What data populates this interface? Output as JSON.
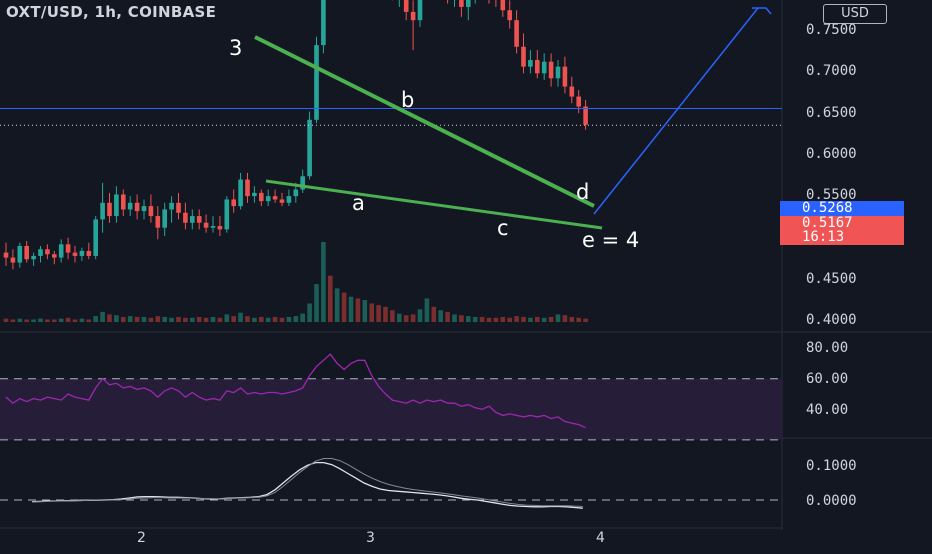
{
  "header": {
    "title": "OXT/USD, 1h, COINBASE",
    "currency": "USD"
  },
  "colors": {
    "background": "#131722",
    "up": "#26a69a",
    "down": "#ef5350",
    "upVolume": "#1a5e57",
    "downVolume": "#7a2e2e",
    "wedgeLine": "#4caf50",
    "projection": "#2962ff",
    "rsiLine": "#9c27b0",
    "rsiBand": "#2a1e3d",
    "currentPriceLine": "#2962ff",
    "lastPriceTag": "#f05454"
  },
  "chart_data": [
    {
      "type": "candlestick",
      "title": "OXT/USD, 1h, COINBASE",
      "x_ticks": [
        "2",
        "3",
        "4"
      ],
      "y_ticks": [
        "0.7500",
        "0.7000",
        "0.6500",
        "0.6000",
        "0.5500",
        "0.4500",
        "0.4000"
      ],
      "ylim": [
        0.4,
        0.76
      ],
      "price_labels": {
        "blue": "0.5268",
        "last": "0.5167",
        "countdown": "16:13"
      },
      "candles": [
        [
          0.44,
          0.446,
          0.432,
          0.437
        ],
        [
          0.437,
          0.442,
          0.43,
          0.434
        ],
        [
          0.434,
          0.446,
          0.431,
          0.444
        ],
        [
          0.444,
          0.447,
          0.434,
          0.436
        ],
        [
          0.436,
          0.44,
          0.432,
          0.438
        ],
        [
          0.438,
          0.444,
          0.434,
          0.442
        ],
        [
          0.442,
          0.445,
          0.436,
          0.439
        ],
        [
          0.439,
          0.441,
          0.433,
          0.437
        ],
        [
          0.437,
          0.448,
          0.434,
          0.445
        ],
        [
          0.445,
          0.449,
          0.436,
          0.44
        ],
        [
          0.44,
          0.444,
          0.434,
          0.438
        ],
        [
          0.438,
          0.443,
          0.435,
          0.441
        ],
        [
          0.441,
          0.446,
          0.436,
          0.438
        ],
        [
          0.438,
          0.462,
          0.436,
          0.46
        ],
        [
          0.46,
          0.482,
          0.452,
          0.47
        ],
        [
          0.47,
          0.476,
          0.458,
          0.462
        ],
        [
          0.462,
          0.48,
          0.458,
          0.475
        ],
        [
          0.475,
          0.478,
          0.462,
          0.466
        ],
        [
          0.466,
          0.474,
          0.462,
          0.47
        ],
        [
          0.47,
          0.475,
          0.46,
          0.465
        ],
        [
          0.465,
          0.472,
          0.46,
          0.468
        ],
        [
          0.468,
          0.475,
          0.458,
          0.462
        ],
        [
          0.462,
          0.468,
          0.448,
          0.455
        ],
        [
          0.455,
          0.47,
          0.45,
          0.466
        ],
        [
          0.466,
          0.474,
          0.458,
          0.47
        ],
        [
          0.47,
          0.476,
          0.46,
          0.464
        ],
        [
          0.464,
          0.47,
          0.454,
          0.458
        ],
        [
          0.458,
          0.466,
          0.454,
          0.462
        ],
        [
          0.462,
          0.466,
          0.454,
          0.458
        ],
        [
          0.458,
          0.463,
          0.452,
          0.455
        ],
        [
          0.455,
          0.462,
          0.452,
          0.456
        ],
        [
          0.456,
          0.462,
          0.45,
          0.454
        ],
        [
          0.454,
          0.474,
          0.452,
          0.472
        ],
        [
          0.472,
          0.478,
          0.464,
          0.468
        ],
        [
          0.468,
          0.488,
          0.466,
          0.484
        ],
        [
          0.484,
          0.488,
          0.47,
          0.474
        ],
        [
          0.474,
          0.48,
          0.47,
          0.476
        ],
        [
          0.476,
          0.478,
          0.468,
          0.471
        ],
        [
          0.471,
          0.478,
          0.468,
          0.474
        ],
        [
          0.474,
          0.478,
          0.47,
          0.472
        ],
        [
          0.472,
          0.476,
          0.468,
          0.47
        ],
        [
          0.47,
          0.478,
          0.468,
          0.474
        ],
        [
          0.474,
          0.482,
          0.47,
          0.478
        ],
        [
          0.478,
          0.49,
          0.476,
          0.486
        ],
        [
          0.486,
          0.525,
          0.484,
          0.52
        ],
        [
          0.52,
          0.57,
          0.518,
          0.565
        ],
        [
          0.565,
          0.75,
          0.56,
          0.66
        ],
        [
          0.66,
          0.74,
          0.62,
          0.64
        ],
        [
          0.64,
          0.69,
          0.62,
          0.67
        ],
        [
          0.67,
          0.7,
          0.632,
          0.64
        ],
        [
          0.64,
          0.7,
          0.635,
          0.695
        ],
        [
          0.695,
          0.712,
          0.66,
          0.675
        ],
        [
          0.675,
          0.712,
          0.66,
          0.705
        ],
        [
          0.705,
          0.715,
          0.66,
          0.665
        ],
        [
          0.665,
          0.672,
          0.638,
          0.645
        ],
        [
          0.645,
          0.656,
          0.615,
          0.625
        ],
        [
          0.625,
          0.64,
          0.592,
          0.598
        ],
        [
          0.598,
          0.606,
          0.588,
          0.6
        ],
        [
          0.6,
          0.608,
          0.58,
          0.585
        ],
        [
          0.585,
          0.592,
          0.562,
          0.58
        ],
        [
          0.58,
          0.61,
          0.576,
          0.605
        ],
        [
          0.605,
          0.662,
          0.598,
          0.612
        ],
        [
          0.612,
          0.625,
          0.598,
          0.605
        ],
        [
          0.605,
          0.622,
          0.595,
          0.615
        ],
        [
          0.615,
          0.622,
          0.59,
          0.595
        ],
        [
          0.595,
          0.612,
          0.588,
          0.61
        ],
        [
          0.61,
          0.614,
          0.582,
          0.588
        ],
        [
          0.588,
          0.6,
          0.58,
          0.595
        ],
        [
          0.595,
          0.612,
          0.59,
          0.605
        ],
        [
          0.605,
          0.615,
          0.595,
          0.6
        ],
        [
          0.6,
          0.606,
          0.59,
          0.598
        ],
        [
          0.598,
          0.604,
          0.588,
          0.594
        ],
        [
          0.594,
          0.6,
          0.582,
          0.586
        ],
        [
          0.586,
          0.592,
          0.575,
          0.58
        ],
        [
          0.58,
          0.586,
          0.56,
          0.564
        ],
        [
          0.564,
          0.572,
          0.548,
          0.552
        ],
        [
          0.552,
          0.562,
          0.548,
          0.556
        ],
        [
          0.556,
          0.562,
          0.545,
          0.548
        ],
        [
          0.548,
          0.56,
          0.544,
          0.555
        ],
        [
          0.555,
          0.56,
          0.54,
          0.545
        ],
        [
          0.545,
          0.556,
          0.54,
          0.552
        ],
        [
          0.552,
          0.558,
          0.536,
          0.54
        ],
        [
          0.54,
          0.546,
          0.53,
          0.534
        ],
        [
          0.534,
          0.538,
          0.524,
          0.528
        ],
        [
          0.528,
          0.532,
          0.514,
          0.517
        ]
      ]
    },
    {
      "type": "bar",
      "title": "Volume",
      "values": [
        4,
        3,
        4,
        3,
        3,
        4,
        3,
        3,
        4,
        5,
        3,
        4,
        3,
        7,
        12,
        9,
        8,
        6,
        7,
        6,
        6,
        5,
        7,
        6,
        5,
        6,
        5,
        5,
        6,
        5,
        6,
        5,
        9,
        7,
        11,
        7,
        5,
        6,
        5,
        6,
        5,
        6,
        7,
        10,
        22,
        45,
        95,
        55,
        40,
        35,
        30,
        28,
        26,
        22,
        20,
        18,
        14,
        10,
        8,
        9,
        15,
        28,
        18,
        14,
        12,
        9,
        8,
        7,
        6,
        6,
        5,
        5,
        6,
        5,
        7,
        6,
        5,
        6,
        5,
        6,
        9,
        8,
        6,
        5,
        4
      ]
    },
    {
      "type": "line",
      "title": "RSI",
      "y_ticks": [
        "80.00",
        "60.00",
        "40.00"
      ],
      "ylim": [
        30,
        90
      ],
      "values": [
        58,
        54,
        57,
        55,
        57,
        56,
        58,
        57,
        56,
        60,
        58,
        57,
        56,
        64,
        70,
        66,
        67,
        64,
        65,
        63,
        64,
        62,
        58,
        62,
        64,
        62,
        58,
        61,
        58,
        56,
        57,
        56,
        62,
        61,
        64,
        60,
        61,
        60,
        61,
        61,
        60,
        61,
        62,
        64,
        72,
        78,
        82,
        86,
        80,
        76,
        80,
        82,
        82,
        72,
        65,
        60,
        56,
        55,
        54,
        56,
        54,
        56,
        55,
        56,
        54,
        54,
        52,
        53,
        51,
        50,
        52,
        48,
        46,
        47,
        46,
        45,
        46,
        45,
        46,
        44,
        45,
        42,
        41,
        40,
        38
      ]
    },
    {
      "type": "line",
      "title": "MACD",
      "y_ticks": [
        "0.1000",
        "0.0000"
      ],
      "ylim": [
        -0.04,
        0.14
      ],
      "series": [
        {
          "values": [
            -0.005,
            -0.004,
            -0.003,
            -0.003,
            -0.002,
            -0.002,
            -0.001,
            -0.001,
            -0.001,
            0.0,
            0.001,
            0.003,
            0.006,
            0.009,
            0.01,
            0.01,
            0.009,
            0.008,
            0.008,
            0.007,
            0.006,
            0.004,
            0.003,
            0.003,
            0.005,
            0.006,
            0.007,
            0.008,
            0.01,
            0.016,
            0.03,
            0.05,
            0.07,
            0.088,
            0.102,
            0.11,
            0.11,
            0.104,
            0.092,
            0.078,
            0.064,
            0.05,
            0.04,
            0.032,
            0.028,
            0.026,
            0.024,
            0.022,
            0.02,
            0.018,
            0.016,
            0.013,
            0.009,
            0.005,
            0.002,
            0.0,
            -0.004,
            -0.008,
            -0.012,
            -0.016,
            -0.018,
            -0.019,
            -0.02,
            -0.02,
            -0.019,
            -0.019,
            -0.02,
            -0.022,
            -0.024
          ]
        },
        {
          "values": [
            -0.006,
            -0.005,
            -0.004,
            -0.003,
            -0.003,
            -0.002,
            -0.002,
            -0.001,
            -0.001,
            -0.001,
            0.0,
            0.001,
            0.003,
            0.005,
            0.006,
            0.007,
            0.007,
            0.006,
            0.006,
            0.006,
            0.005,
            0.004,
            0.004,
            0.003,
            0.004,
            0.005,
            0.006,
            0.007,
            0.008,
            0.012,
            0.022,
            0.04,
            0.06,
            0.08,
            0.098,
            0.114,
            0.122,
            0.122,
            0.116,
            0.104,
            0.09,
            0.076,
            0.064,
            0.054,
            0.046,
            0.04,
            0.035,
            0.031,
            0.028,
            0.025,
            0.022,
            0.019,
            0.016,
            0.012,
            0.009,
            0.006,
            0.002,
            -0.002,
            -0.006,
            -0.01,
            -0.013,
            -0.015,
            -0.016,
            -0.017,
            -0.017,
            -0.017,
            -0.017,
            -0.018,
            -0.019
          ]
        }
      ]
    }
  ],
  "annotations": {
    "wave_3": "3",
    "wave_a": "a",
    "wave_b": "b",
    "wave_c": "c",
    "wave_d": "d",
    "wave_e": "e = 4"
  }
}
